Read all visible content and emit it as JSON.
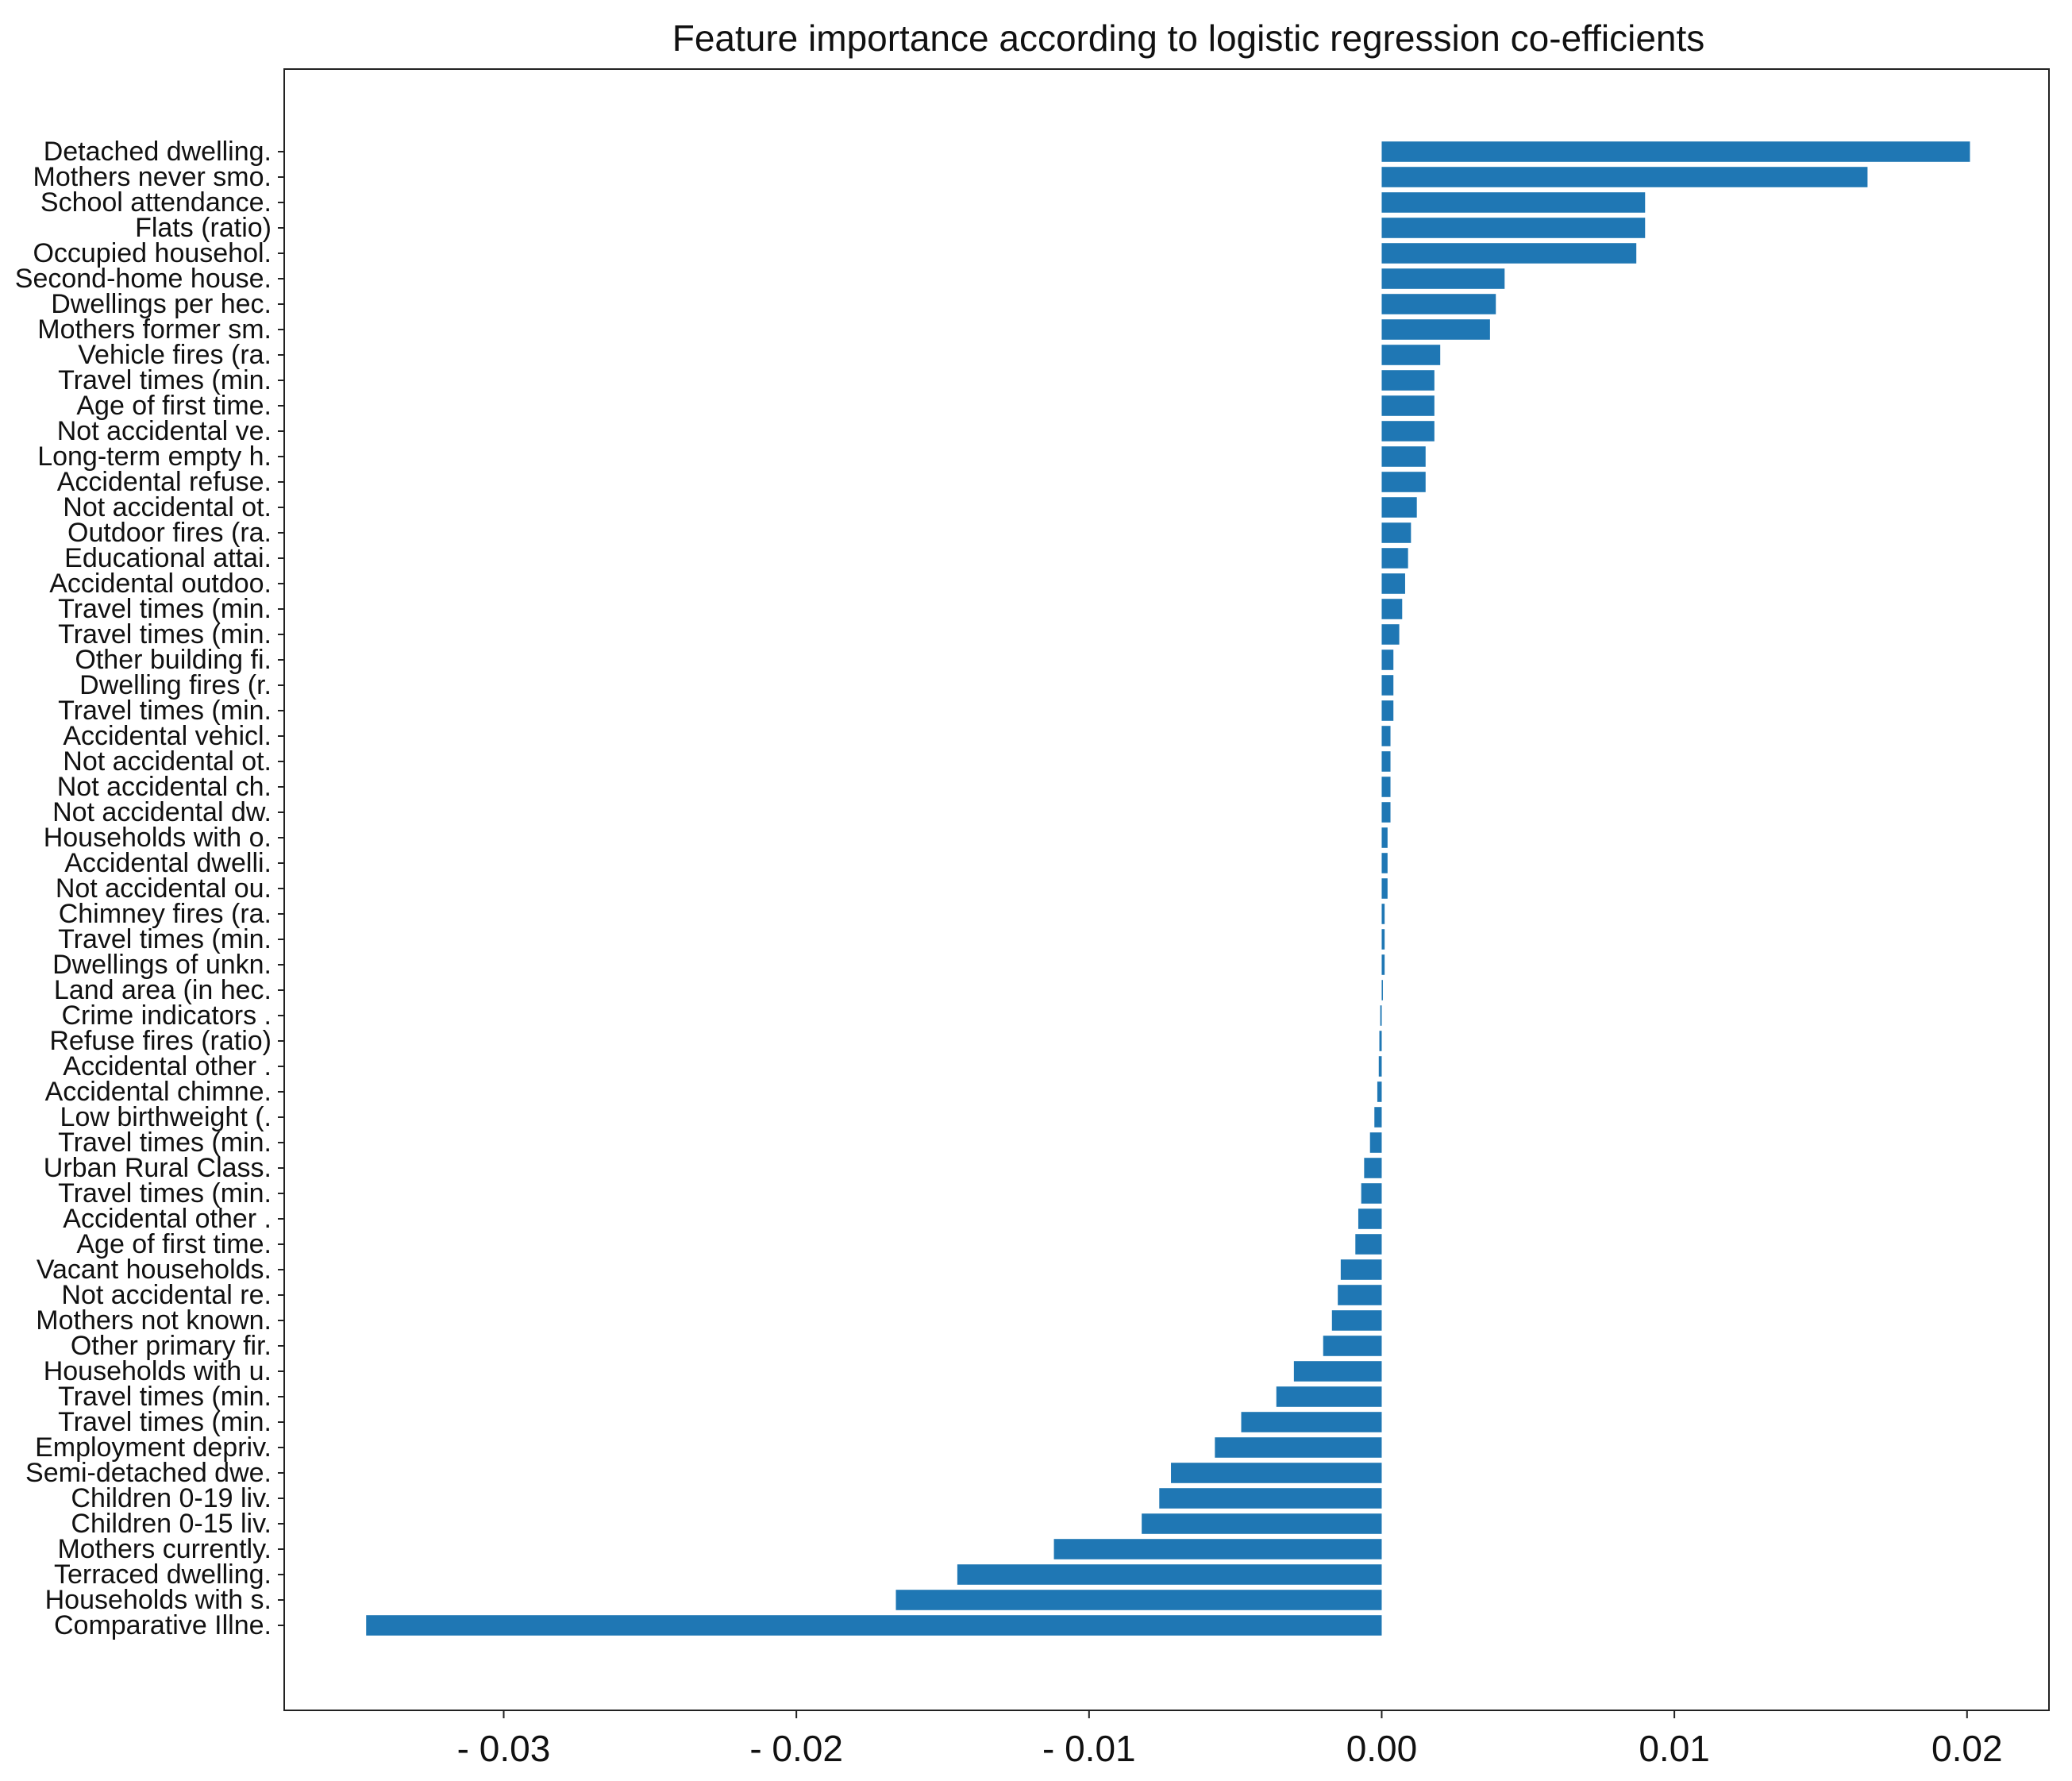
{
  "chart_data": {
    "type": "bar",
    "orientation": "horizontal",
    "title": "Feature importance according to logistic regression co-efficients",
    "xlabel": "",
    "ylabel": "",
    "xlim": [
      -0.0375,
      0.0228
    ],
    "grid": false,
    "legend": "none",
    "bar_color": "#1f77b4",
    "xticks": [
      {
        "value": -0.03,
        "label": "- 0.03"
      },
      {
        "value": -0.02,
        "label": "- 0.02"
      },
      {
        "value": -0.01,
        "label": "- 0.01"
      },
      {
        "value": 0.0,
        "label": "0.00"
      },
      {
        "value": 0.01,
        "label": "0.01"
      },
      {
        "value": 0.02,
        "label": "0.02"
      }
    ],
    "categories": [
      "Detached dwelling.",
      "Mothers never smo.",
      "School attendance.",
      "Flats (ratio)",
      "Occupied househol.",
      "Second-home house.",
      "Dwellings per hec.",
      "Mothers former sm.",
      "Vehicle fires (ra.",
      "Travel times (min.",
      "Age of first time.",
      "Not accidental ve.",
      "Long-term empty h.",
      "Accidental refuse.",
      "Not accidental ot.",
      "Outdoor fires (ra.",
      "Educational attai.",
      "Accidental outdoo.",
      "Travel times (min.",
      "Travel times (min.",
      "Other building fi.",
      "Dwelling fires (r.",
      "Travel times (min.",
      "Accidental vehicl.",
      "Not accidental ot.",
      "Not accidental ch.",
      "Not accidental dw.",
      "Households with o.",
      "Accidental dwelli.",
      "Not accidental ou.",
      "Chimney fires (ra.",
      "Travel times (min.",
      "Dwellings of unkn.",
      "Land area (in hec.",
      "Crime indicators .",
      "Refuse fires (ratio)",
      "Accidental other .",
      "Accidental chimne.",
      "Low birthweight (.",
      "Travel times (min.",
      "Urban Rural Class.",
      "Travel times (min.",
      "Accidental other .",
      "Age of first time.",
      "Vacant households.",
      "Not accidental re.",
      "Mothers not known.",
      "Other primary fir.",
      "Households with u.",
      "Travel times (min.",
      "Travel times (min.",
      "Employment depriv.",
      "Semi-detached dwe.",
      "Children 0-19 liv.",
      "Children 0-15 liv.",
      "Mothers currently.",
      "Terraced dwelling.",
      "Households with s.",
      "Comparative Illne."
    ],
    "values": [
      0.0201,
      0.0166,
      0.009,
      0.009,
      0.0087,
      0.0042,
      0.0039,
      0.0037,
      0.002,
      0.0018,
      0.0018,
      0.0018,
      0.0015,
      0.0015,
      0.0012,
      0.001,
      0.0009,
      0.0008,
      0.0007,
      0.0006,
      0.0004,
      0.0004,
      0.0004,
      0.0003,
      0.0003,
      0.0003,
      0.0003,
      0.0002,
      0.0002,
      0.0002,
      0.0001,
      0.0001,
      0.0001,
      3e-05,
      -5e-05,
      -8e-05,
      -0.0001,
      -0.00015,
      -0.00025,
      -0.0004,
      -0.0006,
      -0.0007,
      -0.0008,
      -0.0009,
      -0.0014,
      -0.0015,
      -0.0017,
      -0.002,
      -0.003,
      -0.0036,
      -0.0048,
      -0.0057,
      -0.0072,
      -0.0076,
      -0.0082,
      -0.0112,
      -0.0145,
      -0.0166,
      -0.0347
    ]
  }
}
